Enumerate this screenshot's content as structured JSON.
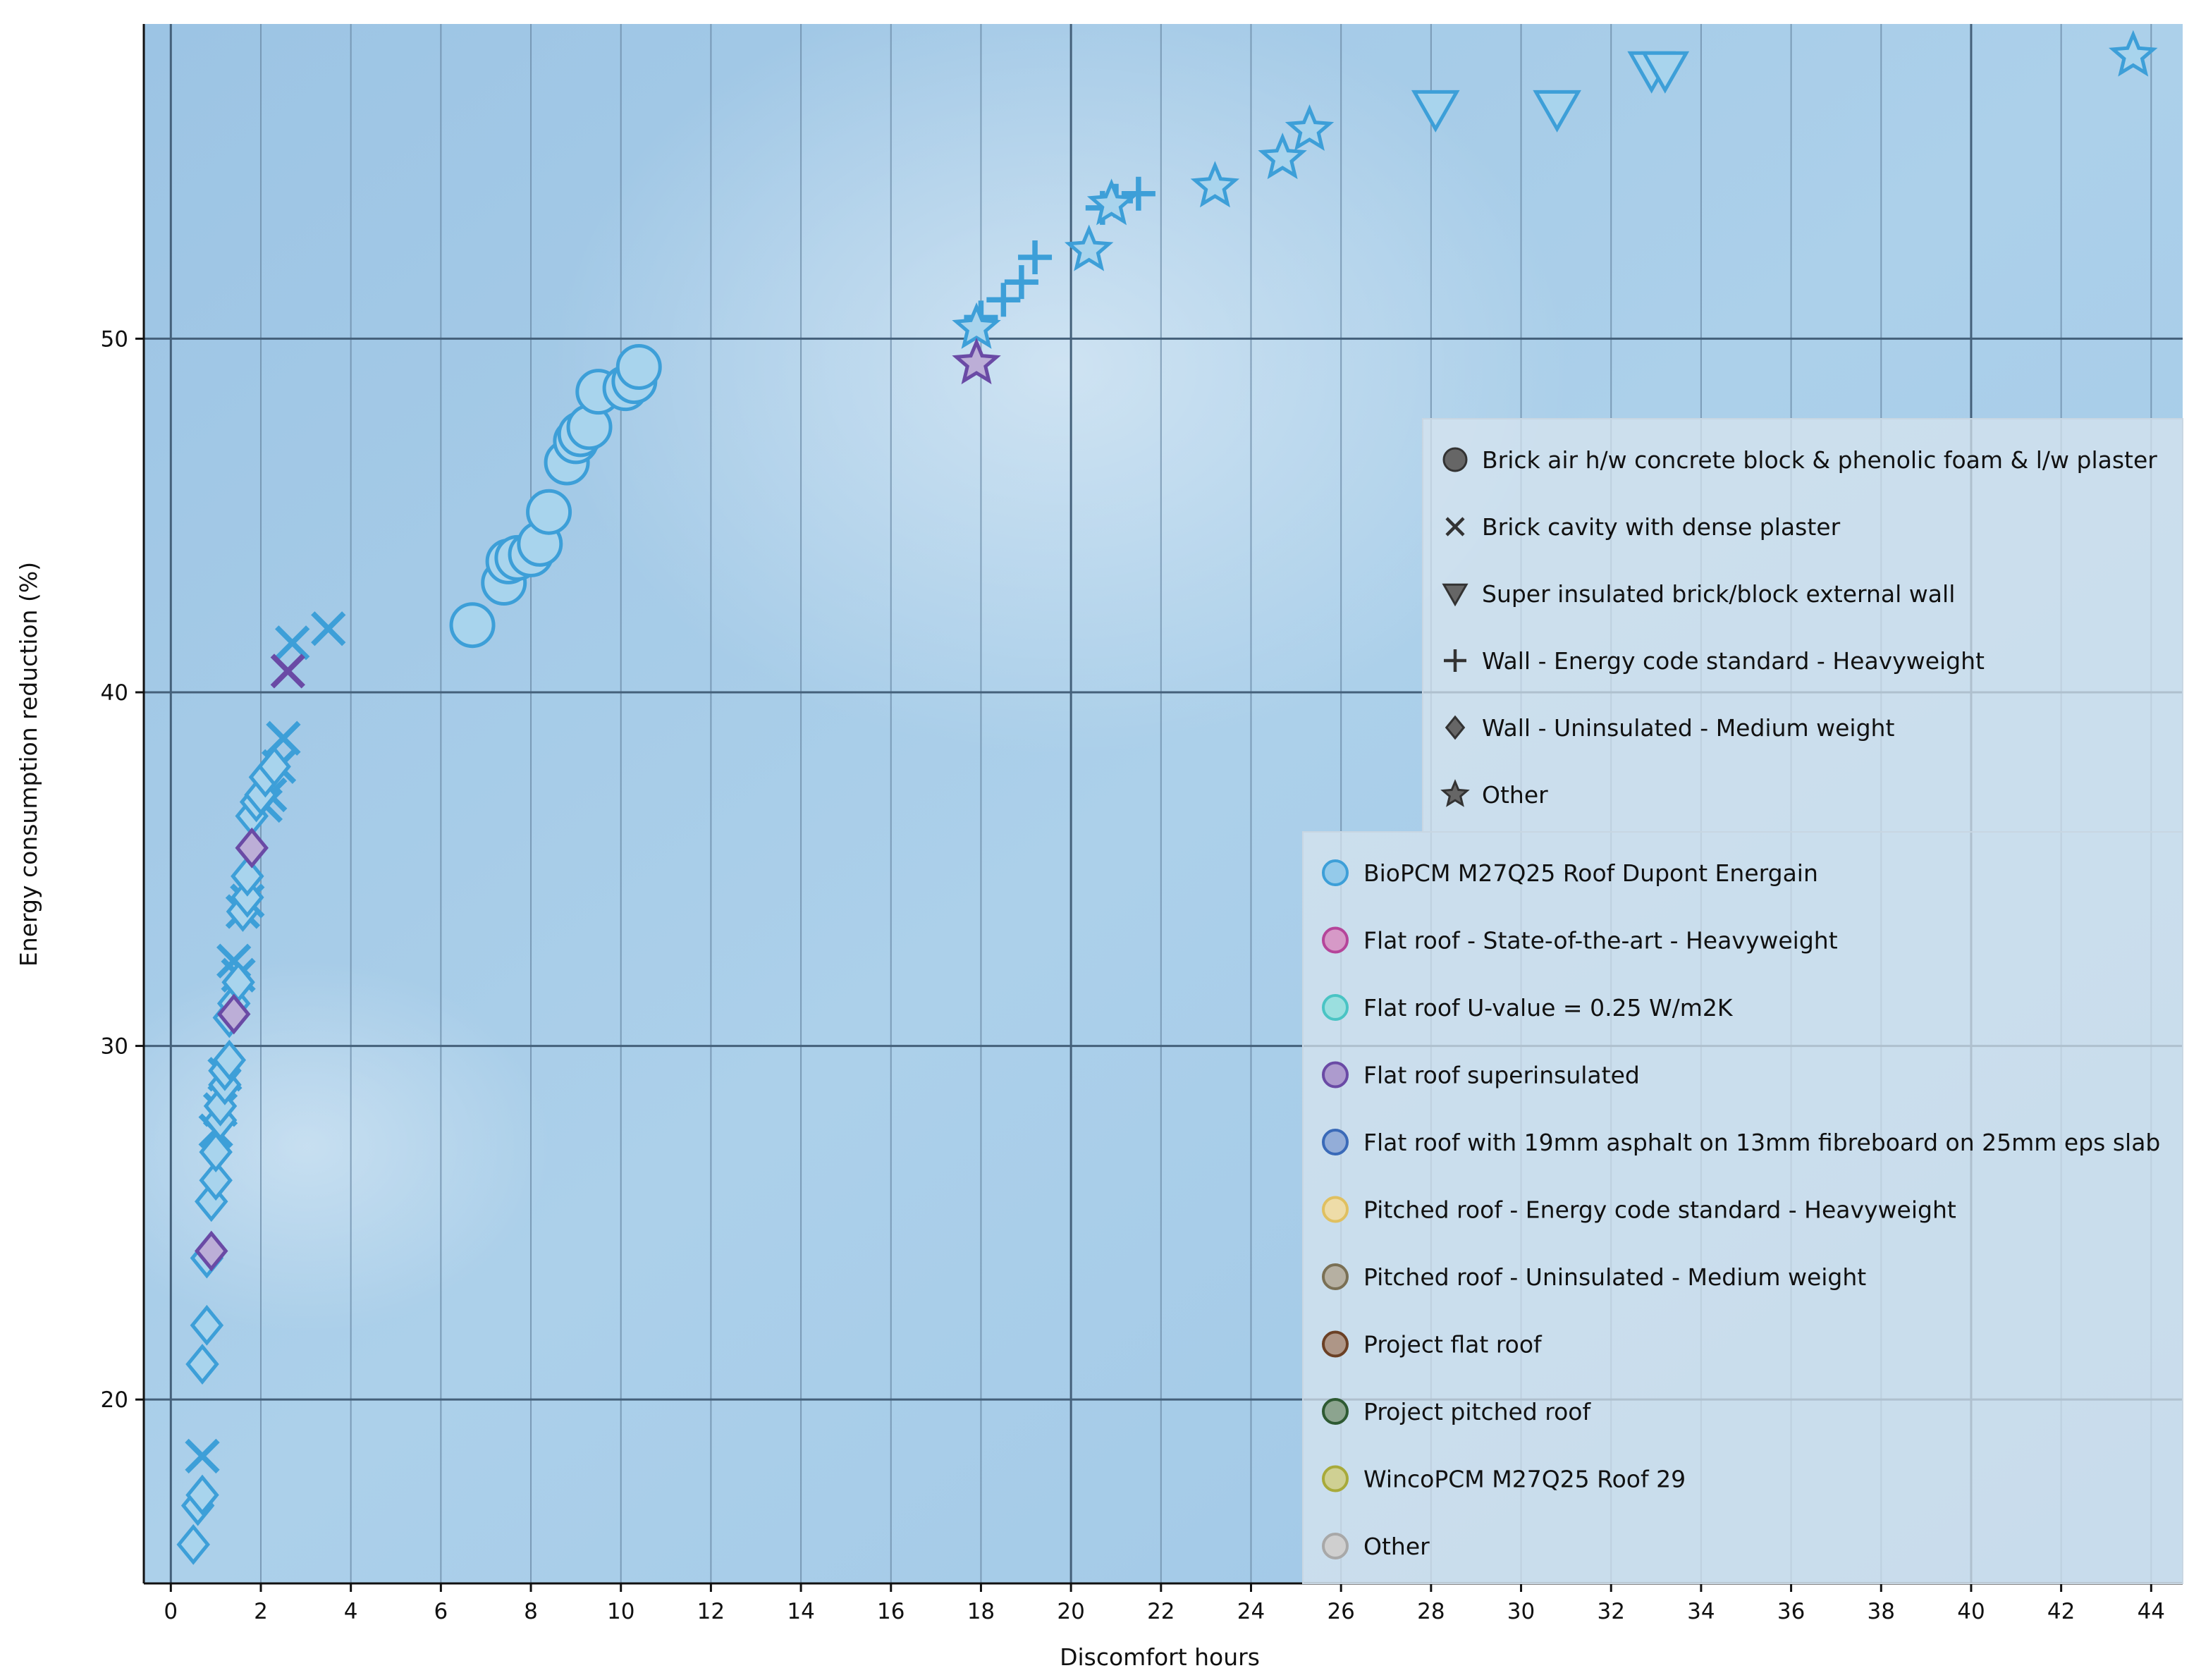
{
  "chart_data": {
    "type": "scatter",
    "xlabel": "Discomfort hours",
    "ylabel": "Energy consumption reduction (%)",
    "xlim": [
      -0.6,
      44.7
    ],
    "ylim": [
      14.8,
      58.9
    ],
    "x_ticks": [
      0,
      2,
      4,
      6,
      8,
      10,
      12,
      14,
      16,
      18,
      20,
      22,
      24,
      26,
      28,
      30,
      32,
      34,
      36,
      38,
      40,
      42,
      44
    ],
    "y_ticks": [
      20,
      30,
      40,
      50
    ],
    "x_major_gridlines": [
      0,
      20,
      40
    ],
    "x_minor_gridlines": [
      2,
      4,
      6,
      8,
      10,
      12,
      14,
      16,
      18,
      22,
      24,
      26,
      28,
      30,
      32,
      34,
      36,
      38,
      42,
      44
    ],
    "grid": true,
    "background": "blue gradient",
    "shape_legend": [
      {
        "shape": "circle",
        "label": "Brick air h/w concrete block & phenolic foam & l/w plaster"
      },
      {
        "shape": "x",
        "label": "Brick cavity with dense plaster"
      },
      {
        "shape": "triangle-down",
        "label": "Super insulated brick/block external wall"
      },
      {
        "shape": "plus",
        "label": "Wall - Energy code standard - Heavyweight"
      },
      {
        "shape": "diamond",
        "label": "Wall - Uninsulated - Medium weight"
      },
      {
        "shape": "star",
        "label": "Other"
      }
    ],
    "color_legend": [
      {
        "label": "BioPCM M27Q25 Roof Dupont Energain",
        "color": "#3d9fd8"
      },
      {
        "label": "Flat roof - State-of-the-art - Heavyweight",
        "color": "#b5459a"
      },
      {
        "label": "Flat roof U-value = 0.25 W/m2K",
        "color": "#4ac4c4"
      },
      {
        "label": "Flat roof superinsulated",
        "color": "#6a4aa5"
      },
      {
        "label": "Flat roof with 19mm asphalt on 13mm fibreboard on 25mm eps slab",
        "color": "#3a6ab8"
      },
      {
        "label": "Pitched roof - Energy code standard - Heavyweight",
        "color": "#e0c060"
      },
      {
        "label": "Pitched roof - Uninsulated - Medium weight",
        "color": "#7a7055"
      },
      {
        "label": "Project flat roof",
        "color": "#6b4025"
      },
      {
        "label": "Project pitched roof",
        "color": "#2e5a33"
      },
      {
        "label": "WincoPCM M27Q25 Roof 29",
        "color": "#a8aa3a"
      },
      {
        "label": "Other",
        "color": "#a8a8a8"
      }
    ],
    "series": [
      {
        "shape": "circle",
        "color_group": "BioPCM M27Q25 Roof Dupont Energain",
        "x": [
          6.7,
          7.4,
          7.5,
          7.7,
          8.0,
          8.2,
          8.4,
          8.8,
          9.0,
          9.1,
          9.3,
          9.5,
          10.1,
          10.3,
          10.4
        ],
        "y": [
          41.9,
          43.1,
          43.7,
          43.8,
          43.9,
          44.2,
          45.1,
          46.5,
          47.1,
          47.3,
          47.5,
          48.5,
          48.6,
          48.8,
          49.2
        ]
      },
      {
        "shape": "x",
        "color_group": "BioPCM M27Q25 Roof Dupont Energain",
        "x": [
          0.7,
          1.0,
          1.1,
          1.2,
          1.4,
          1.5,
          1.6,
          1.7,
          2.1,
          2.2,
          2.4,
          2.5,
          2.7,
          3.5
        ],
        "y": [
          18.4,
          27.6,
          28.2,
          29.2,
          32.4,
          32.0,
          33.8,
          34.1,
          36.8,
          37.1,
          37.9,
          38.7,
          41.4,
          41.8
        ]
      },
      {
        "shape": "x",
        "color_group": "Flat roof superinsulated",
        "x": [
          2.6
        ],
        "y": [
          40.6
        ]
      },
      {
        "shape": "triangle-down",
        "color_group": "BioPCM M27Q25 Roof Dupont Energain",
        "x": [
          28.1,
          30.8,
          32.9,
          33.2
        ],
        "y": [
          56.5,
          56.5,
          57.6,
          57.6
        ]
      },
      {
        "shape": "plus",
        "color_group": "BioPCM M27Q25 Roof Dupont Energain",
        "x": [
          18.0,
          18.5,
          18.9,
          19.2,
          20.7,
          21.0,
          21.5
        ],
        "y": [
          50.6,
          51.1,
          51.6,
          52.3,
          53.7,
          53.9,
          54.1
        ]
      },
      {
        "shape": "diamond",
        "color_group": "BioPCM M27Q25 Roof Dupont Energain",
        "x": [
          0.5,
          0.6,
          0.7,
          0.7,
          0.8,
          0.8,
          0.9,
          1.0,
          1.0,
          1.1,
          1.1,
          1.2,
          1.2,
          1.3,
          1.3,
          1.4,
          1.5,
          1.6,
          1.7,
          1.7,
          1.8,
          1.9,
          2.0,
          2.1,
          2.3
        ],
        "y": [
          15.9,
          17.0,
          17.3,
          21.0,
          22.1,
          24.0,
          25.6,
          26.2,
          27.0,
          27.9,
          28.3,
          28.9,
          29.3,
          29.6,
          30.8,
          31.2,
          31.8,
          33.8,
          34.2,
          34.8,
          36.5,
          36.9,
          37.1,
          37.6,
          37.9
        ]
      },
      {
        "shape": "diamond",
        "color_group": "Flat roof superinsulated",
        "x": [
          0.9,
          1.4,
          1.8
        ],
        "y": [
          24.2,
          30.9,
          35.6
        ]
      },
      {
        "shape": "star",
        "color_group": "BioPCM M27Q25 Roof Dupont Energain",
        "x": [
          17.9,
          20.4,
          20.9,
          23.2,
          24.7,
          25.3,
          43.6
        ],
        "y": [
          50.3,
          52.5,
          53.8,
          54.3,
          55.1,
          55.9,
          58.0
        ]
      },
      {
        "shape": "star",
        "color_group": "Flat roof superinsulated",
        "x": [
          17.9
        ],
        "y": [
          49.3
        ]
      }
    ]
  }
}
